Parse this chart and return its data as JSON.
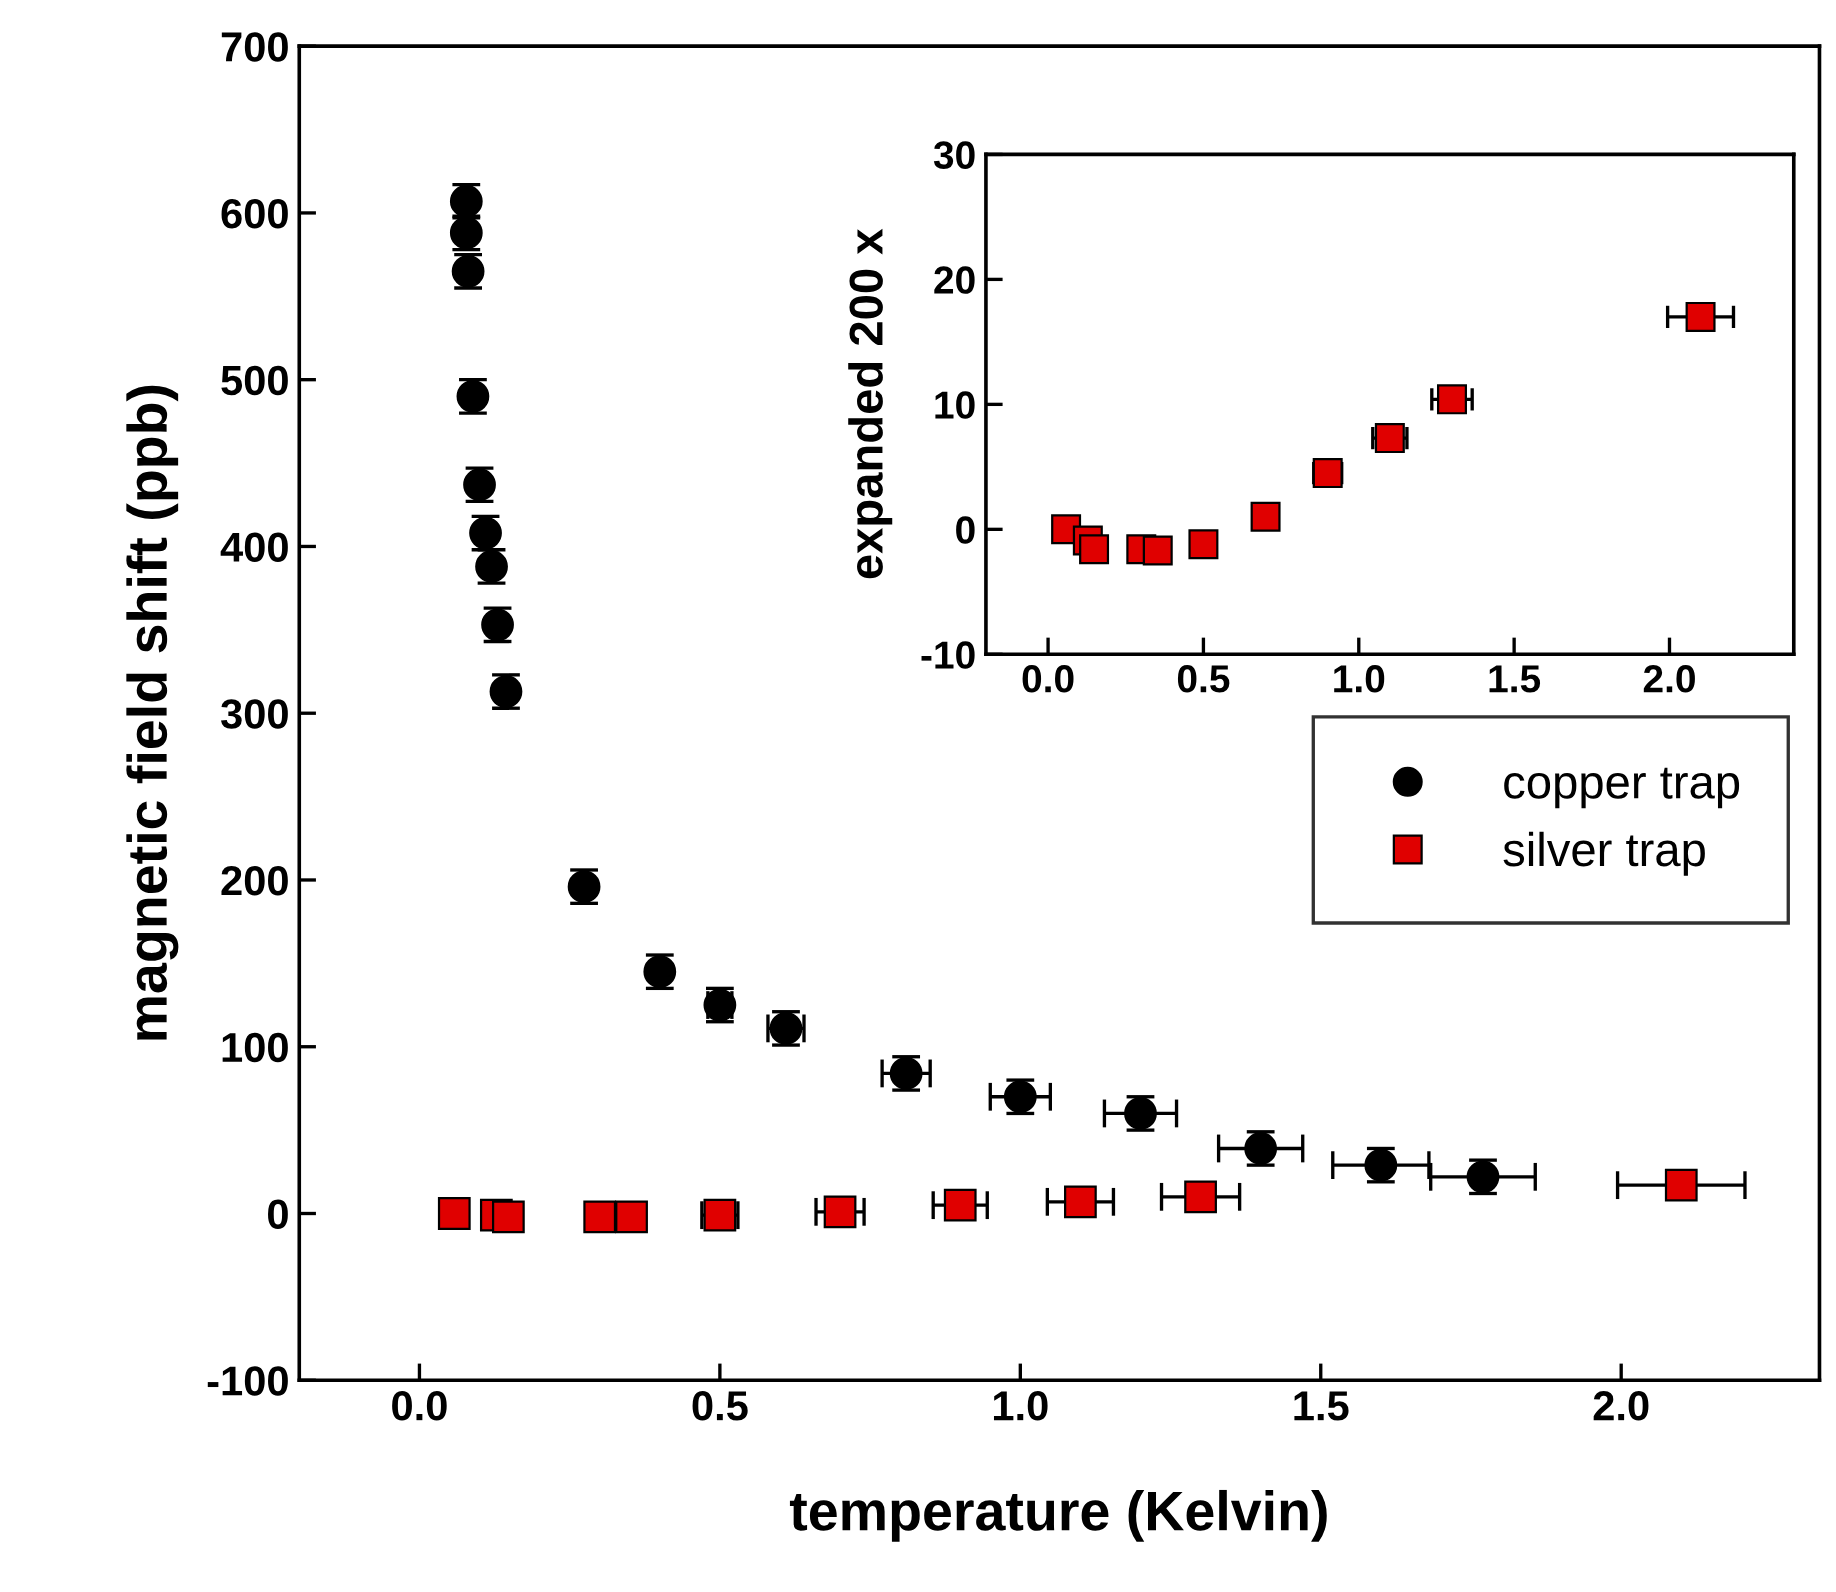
{
  "chart_data": [
    {
      "type": "scatter",
      "xlabel": "temperature (Kelvin)",
      "ylabel": "magnetic field shift (ppb)",
      "xlim": [
        -0.2,
        2.33
      ],
      "xticks": [
        {
          "value": 0,
          "label": "0.0"
        },
        {
          "value": 0.5,
          "label": "0.5"
        },
        {
          "value": 1,
          "label": "1.0"
        },
        {
          "value": 1.5,
          "label": "1.5"
        },
        {
          "value": 2,
          "label": "2.0"
        }
      ],
      "ylim": [
        -100,
        700
      ],
      "yticks": [
        -100,
        0,
        100,
        200,
        300,
        400,
        500,
        600,
        700
      ],
      "grid": false,
      "legend": "right",
      "series": [
        {
          "name": "copper trap",
          "color": "#000000",
          "marker": "circle",
          "x": [
            0.078,
            0.078,
            0.081,
            0.089,
            0.1,
            0.11,
            0.12,
            0.13,
            0.144,
            0.274,
            0.4,
            0.5,
            0.61,
            0.81,
            1.0,
            1.2,
            1.4,
            1.6,
            1.77
          ],
          "values": [
            607,
            588,
            565,
            490,
            437,
            408,
            388,
            353,
            313,
            196,
            145,
            125,
            111,
            84,
            70,
            60,
            39,
            29,
            22
          ],
          "errors": [
            10,
            10,
            10,
            10,
            10,
            10,
            10,
            10,
            10,
            10,
            10,
            10,
            10,
            10,
            10,
            10,
            10,
            10,
            10
          ],
          "xerrors": [
            null,
            null,
            null,
            null,
            null,
            null,
            null,
            null,
            null,
            null,
            null,
            0.02,
            0.03,
            0.04,
            0.05,
            0.06,
            0.07,
            0.08,
            0.087
          ]
        },
        {
          "name": "silver trap",
          "color": "#e00000",
          "marker": "square",
          "x": [
            0.058,
            0.128,
            0.148,
            0.3,
            0.353,
            0.5,
            0.7,
            0.9,
            1.1,
            1.3,
            2.1
          ],
          "values": [
            0,
            -1,
            -2,
            -2,
            -2,
            -1,
            1,
            5,
            7,
            10,
            17
          ],
          "xerrors": [
            null,
            null,
            null,
            null,
            null,
            0.03,
            0.04,
            0.045,
            0.055,
            0.065,
            0.106
          ]
        }
      ]
    },
    {
      "type": "scatter",
      "ylabel": "expanded 200 x",
      "xlim": [
        -0.2,
        2.4
      ],
      "xticks": [
        {
          "value": 0,
          "label": "0.0"
        },
        {
          "value": 0.5,
          "label": "0.5"
        },
        {
          "value": 1,
          "label": "1.0"
        },
        {
          "value": 1.5,
          "label": "1.5"
        },
        {
          "value": 2,
          "label": "2.0"
        }
      ],
      "ylim": [
        -10,
        30
      ],
      "yticks": [
        -10,
        0,
        10,
        20,
        30
      ],
      "grid": false,
      "series": [
        {
          "color": "#e00000",
          "marker": "square",
          "x": [
            0.058,
            0.128,
            0.148,
            0.3,
            0.353,
            0.5,
            0.7,
            0.9,
            1.1,
            1.3,
            2.1
          ],
          "values": [
            0,
            -0.9,
            -1.6,
            -1.6,
            -1.7,
            -1.2,
            1.0,
            4.5,
            7.3,
            10.4,
            17.0
          ],
          "errors": [
            1,
            1,
            1,
            1,
            1,
            1,
            1,
            1,
            1,
            1,
            1
          ],
          "xerrors": [
            null,
            null,
            null,
            null,
            null,
            null,
            0.04,
            0.045,
            0.055,
            0.065,
            0.106
          ]
        }
      ]
    }
  ]
}
